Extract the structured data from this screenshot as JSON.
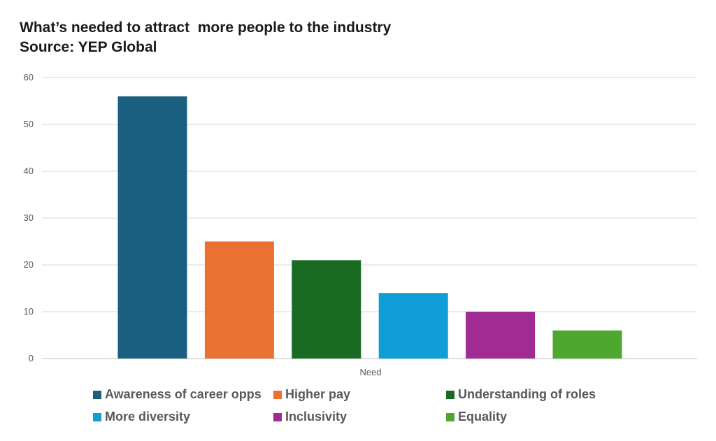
{
  "chart_data": {
    "type": "bar",
    "title": "What’s needed to attract  more people to the industry",
    "subtitle": "Source: YEP Global",
    "xlabel": "Need",
    "ylabel": "",
    "ylim": [
      0,
      60
    ],
    "yticks": [
      0,
      10,
      20,
      30,
      40,
      50,
      60
    ],
    "grid": true,
    "legend_position": "bottom",
    "categories": [
      "Need"
    ],
    "series": [
      {
        "name": "Awareness of career opps",
        "values": [
          56
        ],
        "color": "#1a5e80"
      },
      {
        "name": "Higher pay",
        "values": [
          25
        ],
        "color": "#e97132"
      },
      {
        "name": "Understanding of roles",
        "values": [
          21
        ],
        "color": "#196b24"
      },
      {
        "name": "More diversity",
        "values": [
          14
        ],
        "color": "#0f9ed5"
      },
      {
        "name": "Inclusivity",
        "values": [
          10
        ],
        "color": "#a02b93"
      },
      {
        "name": "Equality",
        "values": [
          6
        ],
        "color": "#4ea72e"
      }
    ]
  }
}
